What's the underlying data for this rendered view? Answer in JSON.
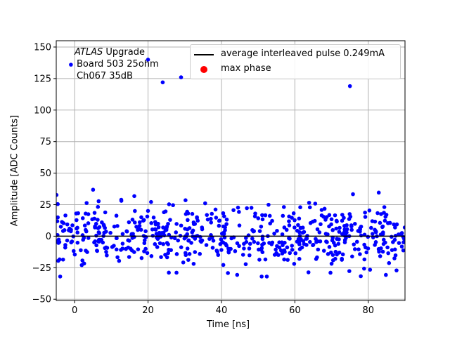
{
  "chart_data": {
    "type": "scatter",
    "xlabel": "Time [ns]",
    "ylabel": "Amplitude [ADC Counts]",
    "xlim": [
      -5,
      90
    ],
    "ylim": [
      -51,
      155
    ],
    "xticks": [
      0,
      20,
      40,
      60,
      80
    ],
    "yticks": [
      -50,
      -25,
      0,
      25,
      50,
      75,
      100,
      125,
      150
    ],
    "grid": true,
    "legend_position": "top-right",
    "annotation": {
      "atlas": "ATLAS",
      "upgrade": " Upgrade",
      "line2": "Board 503 25ohm",
      "line3": "Ch067 35dB"
    },
    "legend": [
      {
        "label": "average interleaved pulse 0.249mA",
        "kind": "line",
        "color": "#000000"
      },
      {
        "label": "max phase",
        "kind": "marker",
        "color": "#ff0000"
      }
    ],
    "series": [
      {
        "kind": "line",
        "color": "#000000",
        "x": [
          -5,
          90
        ],
        "y": [
          0,
          0
        ]
      },
      {
        "kind": "scatter",
        "color": "#0000ff",
        "outliers": {
          "x": [
            -1,
            20,
            24,
            29,
            75
          ],
          "y": [
            136,
            140,
            122,
            126,
            119
          ]
        },
        "bulk": {
          "x_range": [
            -5,
            90
          ],
          "count": 600,
          "sigma": 12,
          "clip": [
            -32,
            43
          ]
        }
      }
    ]
  }
}
